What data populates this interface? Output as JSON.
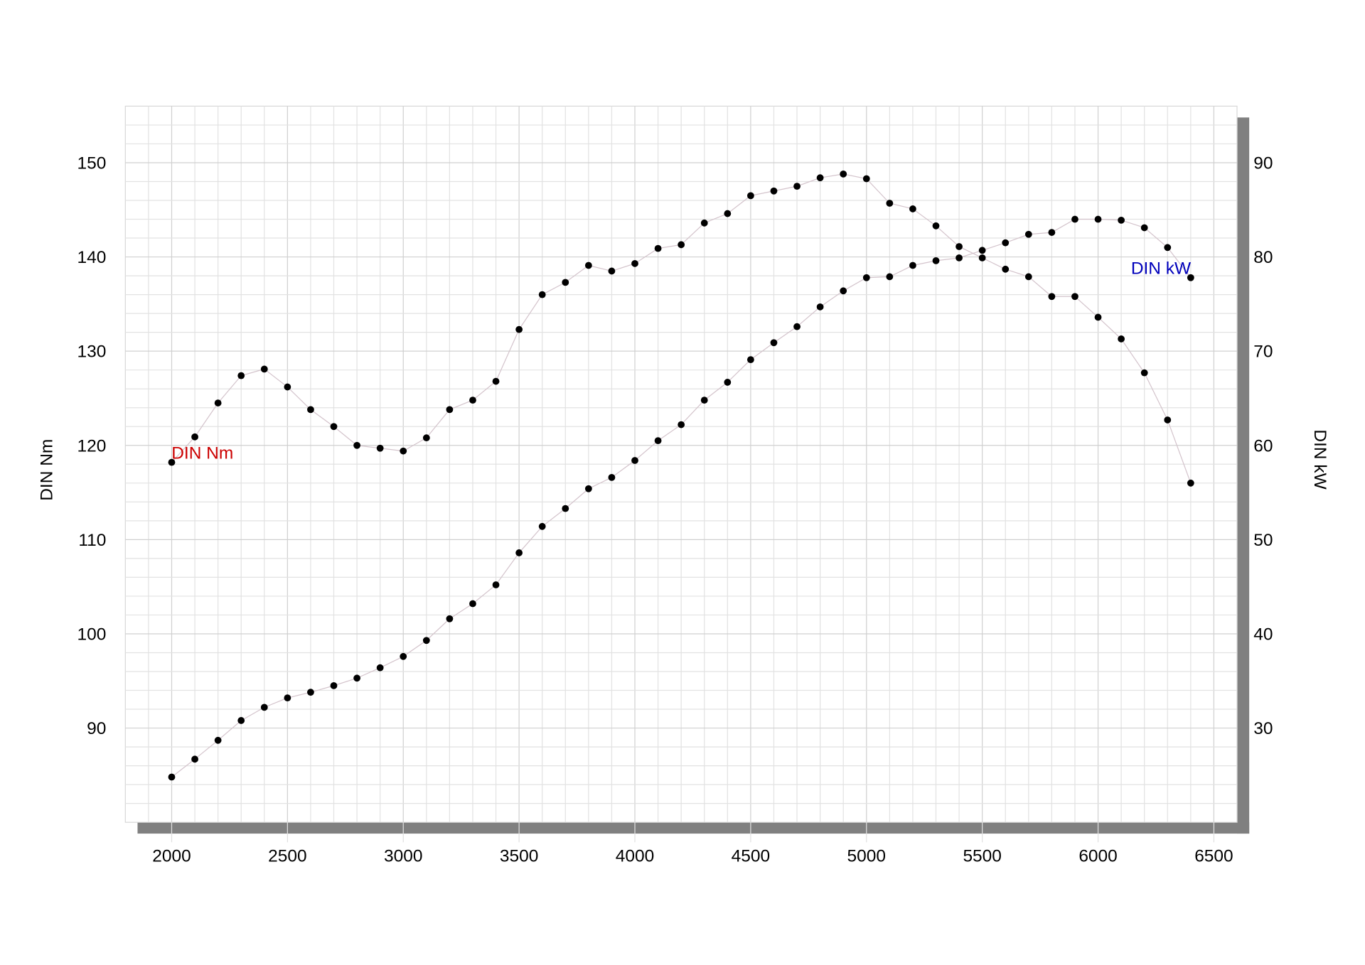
{
  "chart_data": {
    "type": "line",
    "title": "",
    "xlabel": "",
    "ylabel_left": "DIN Nm",
    "ylabel_right": "DIN kW",
    "xlim": [
      1800,
      6600
    ],
    "ylim_left": [
      80,
      156
    ],
    "ylim_right": [
      20,
      96
    ],
    "x_ticks": [
      2000,
      2500,
      3000,
      3500,
      4000,
      4500,
      5000,
      5500,
      6000,
      6500
    ],
    "y_ticks_left": [
      90,
      100,
      110,
      120,
      130,
      140,
      150
    ],
    "y_ticks_right": [
      30,
      40,
      50,
      60,
      70,
      80,
      90
    ],
    "grid": true,
    "x": [
      2000,
      2100,
      2200,
      2300,
      2400,
      2500,
      2600,
      2700,
      2800,
      2900,
      3000,
      3100,
      3200,
      3300,
      3400,
      3500,
      3600,
      3700,
      3800,
      3900,
      4000,
      4100,
      4200,
      4300,
      4400,
      4500,
      4600,
      4700,
      4800,
      4900,
      5000,
      5100,
      5200,
      5300,
      5400,
      5500,
      5600,
      5700,
      5800,
      5900,
      6000,
      6100,
      6200,
      6300,
      6400
    ],
    "series": [
      {
        "name": "DIN Nm",
        "axis": "left",
        "label_color": "#cc0000",
        "values": [
          118.2,
          120.9,
          124.5,
          127.4,
          128.1,
          126.2,
          123.8,
          122.0,
          120.0,
          119.7,
          119.4,
          120.8,
          123.8,
          124.8,
          126.8,
          132.3,
          136.0,
          137.3,
          139.1,
          138.5,
          139.3,
          140.9,
          141.3,
          143.6,
          144.6,
          146.5,
          147.0,
          147.5,
          148.4,
          148.8,
          148.3,
          145.7,
          145.1,
          143.3,
          141.1,
          139.9,
          138.7,
          137.9,
          135.8,
          135.8,
          133.6,
          131.3,
          127.7,
          122.7,
          116.0
        ]
      },
      {
        "name": "DIN kW",
        "axis": "right",
        "label_color": "#0000bb",
        "values": [
          24.8,
          26.7,
          28.7,
          30.8,
          32.2,
          33.2,
          33.8,
          34.5,
          35.3,
          36.4,
          37.6,
          39.3,
          41.6,
          43.2,
          45.2,
          48.6,
          51.4,
          53.3,
          55.4,
          56.6,
          58.4,
          60.5,
          62.2,
          64.8,
          66.7,
          69.1,
          70.9,
          72.6,
          74.7,
          76.4,
          77.8,
          77.9,
          79.1,
          79.6,
          79.9,
          80.7,
          81.5,
          82.4,
          82.6,
          84.0,
          84.0,
          83.9,
          83.1,
          81.0,
          77.8
        ]
      }
    ]
  }
}
